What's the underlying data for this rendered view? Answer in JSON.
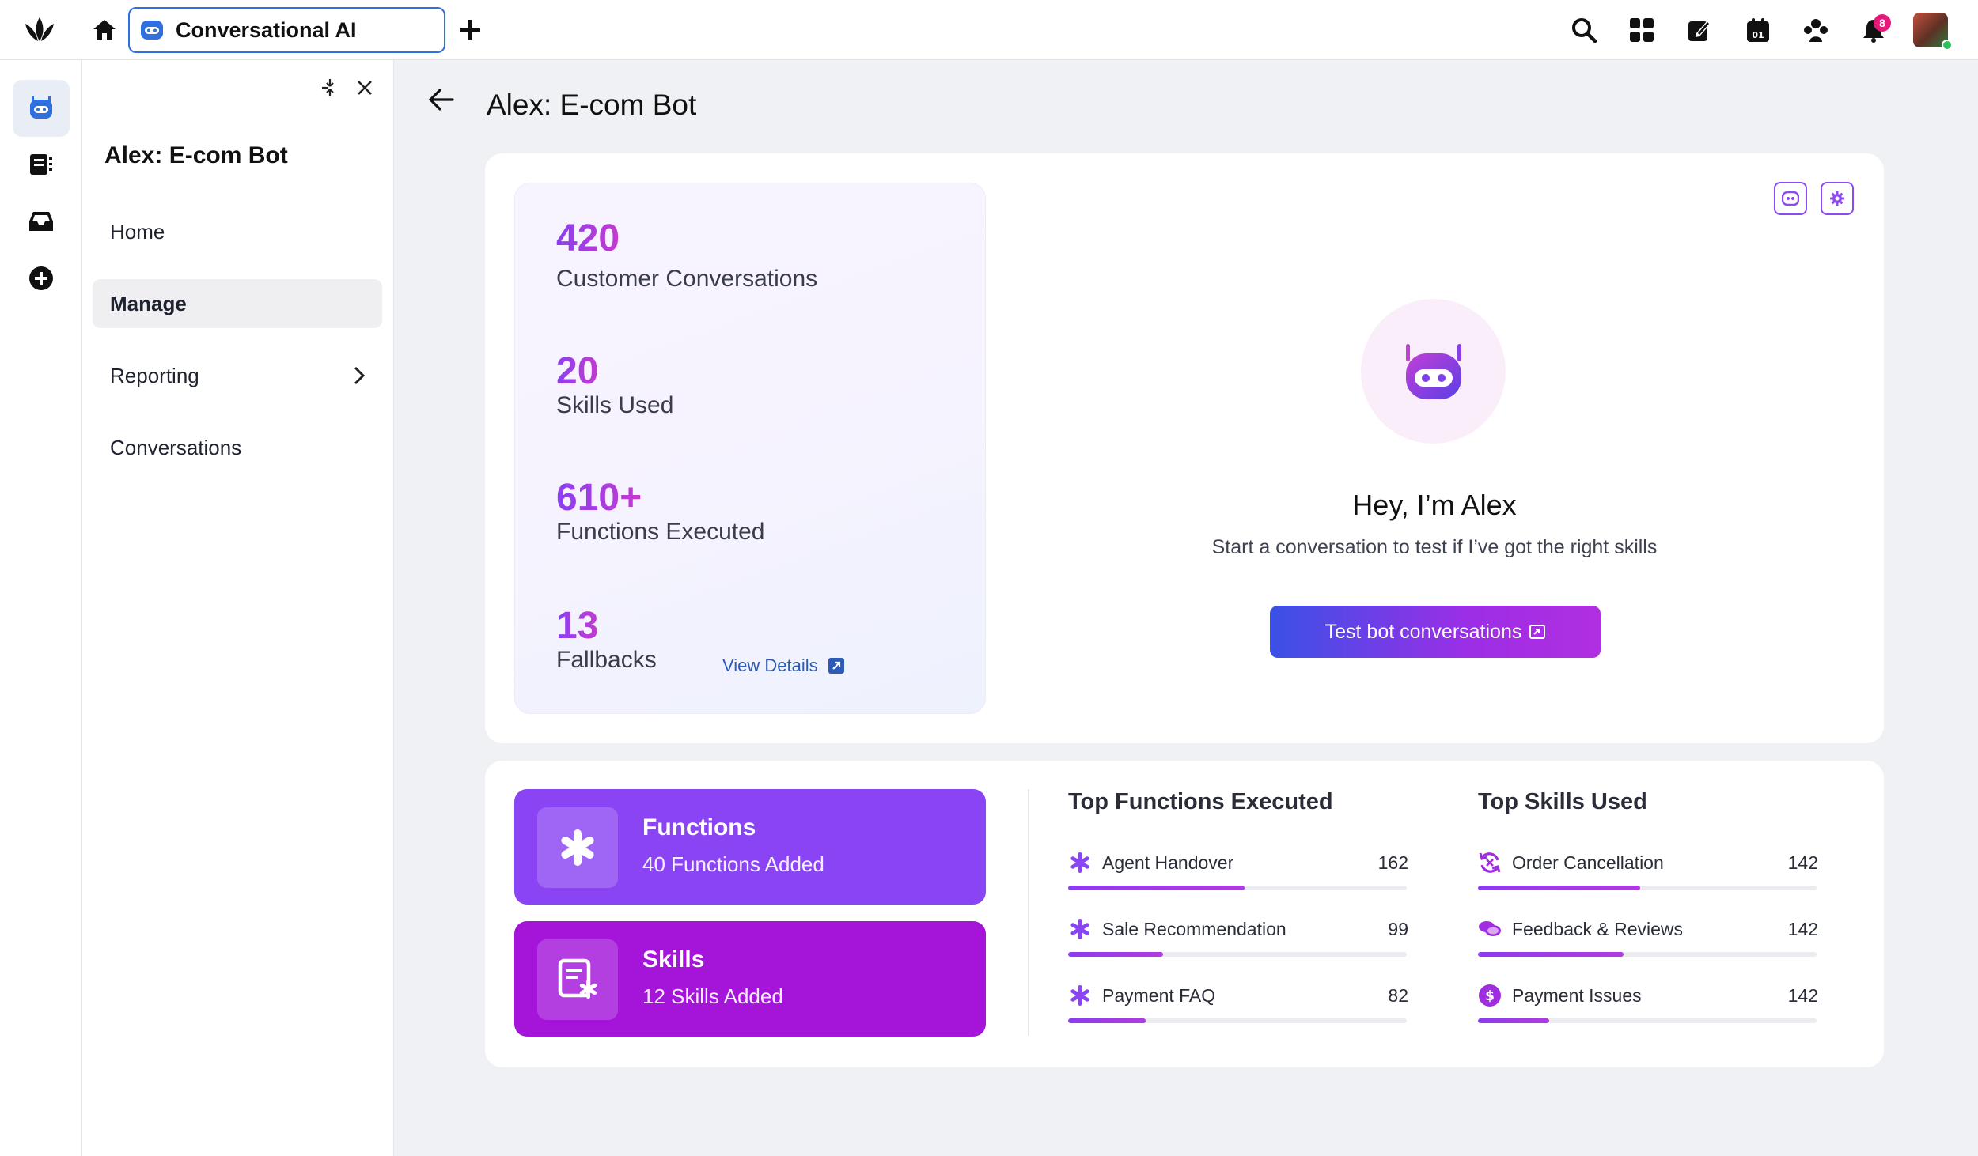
{
  "header": {
    "tab_label": "Conversational AI",
    "notification_count": "8"
  },
  "sidenav": {
    "title": "Alex: E-com Bot",
    "items": [
      {
        "label": "Home"
      },
      {
        "label": "Manage"
      },
      {
        "label": "Reporting"
      },
      {
        "label": "Conversations"
      }
    ]
  },
  "main": {
    "title": "Alex: E-com Bot",
    "stats": [
      {
        "value": "420",
        "label": "Customer Conversations"
      },
      {
        "value": "20",
        "label": "Skills Used"
      },
      {
        "value": "610+",
        "label": "Functions Executed"
      },
      {
        "value": "13",
        "label": "Fallbacks"
      }
    ],
    "view_details": "View Details",
    "greeting": "Hey, I’m Alex",
    "greeting_sub": "Start a conversation to test if I’ve got the right skills",
    "test_button": "Test bot conversations",
    "functions_card": {
      "title": "Functions",
      "subtitle": "40 Functions Added",
      "color": "#8a44f3"
    },
    "skills_card": {
      "title": "Skills",
      "subtitle": "12 Skills Added",
      "color": "#a415d9"
    },
    "top_functions": {
      "title": "Top Functions Executed",
      "max": 162,
      "items": [
        {
          "label": "Agent Handover",
          "value": 162,
          "display": "162",
          "icon": "asterisk-icon",
          "fill": 0.52
        },
        {
          "label": "Sale Recommendation",
          "value": 99,
          "display": "99",
          "icon": "asterisk-icon",
          "fill": 0.28
        },
        {
          "label": "Payment FAQ",
          "value": 82,
          "display": "82",
          "icon": "asterisk-icon",
          "fill": 0.23
        }
      ]
    },
    "top_skills": {
      "title": "Top Skills Used",
      "items": [
        {
          "label": "Order Cancellation",
          "value": 142,
          "display": "142",
          "icon": "refresh-cancel-icon",
          "fill": 0.48
        },
        {
          "label": "Feedback & Reviews",
          "value": 142,
          "display": "142",
          "icon": "chat-bubbles-icon",
          "fill": 0.43
        },
        {
          "label": "Payment Issues",
          "value": 142,
          "display": "142",
          "icon": "dollar-coin-icon",
          "fill": 0.21
        }
      ]
    }
  }
}
